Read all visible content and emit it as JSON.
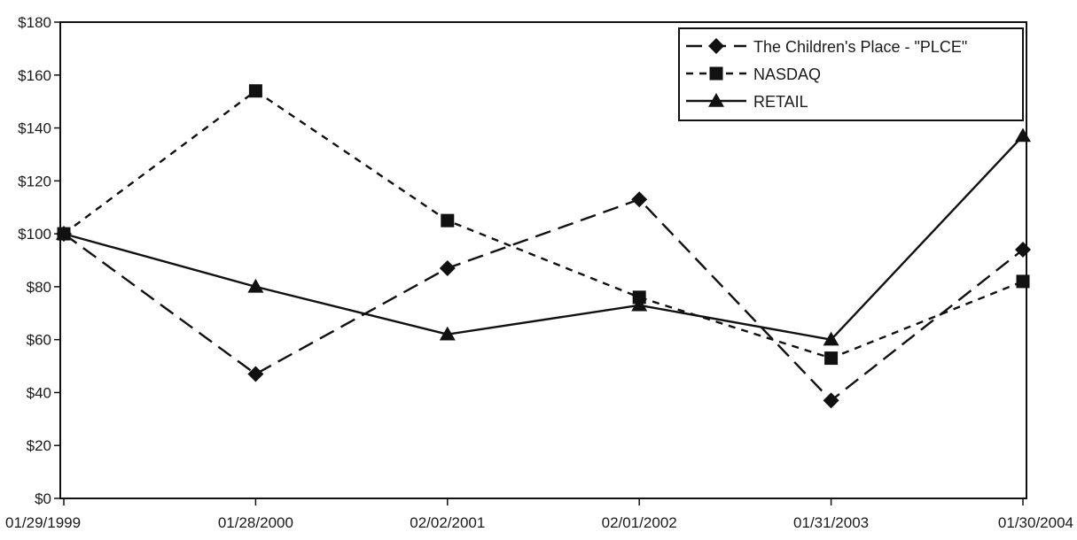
{
  "chart_data": {
    "type": "line",
    "title": "",
    "xlabel": "",
    "ylabel": "",
    "categories": [
      "01/29/1999",
      "01/28/2000",
      "02/02/2001",
      "02/01/2002",
      "01/31/2003",
      "01/30/2004"
    ],
    "ylim": [
      0,
      180
    ],
    "yticks": [
      0,
      20,
      40,
      60,
      80,
      100,
      120,
      140,
      160,
      180
    ],
    "ytick_labels": [
      "$0",
      "$20",
      "$40",
      "$60",
      "$80",
      "$100",
      "$120",
      "$140",
      "$160",
      "$180"
    ],
    "grid": false,
    "legend_position": "top-right",
    "series": [
      {
        "name": "The Children's Place - \"PLCE\"",
        "values": [
          100,
          47,
          87,
          113,
          37,
          94
        ],
        "line_style": "long-dash",
        "marker": "diamond",
        "color": "#111111"
      },
      {
        "name": "NASDAQ",
        "values": [
          100,
          154,
          105,
          76,
          53,
          82
        ],
        "line_style": "short-dash",
        "marker": "square",
        "color": "#111111"
      },
      {
        "name": "RETAIL",
        "values": [
          100,
          80,
          62,
          73,
          60,
          137
        ],
        "line_style": "solid",
        "marker": "triangle",
        "color": "#111111"
      }
    ]
  }
}
